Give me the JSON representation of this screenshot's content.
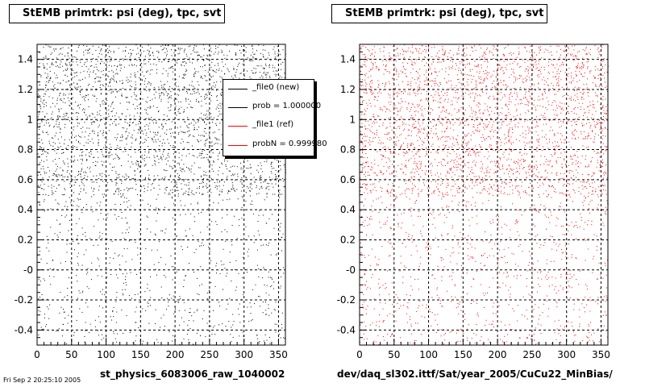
{
  "chart_data": [
    {
      "type": "scatter",
      "title": "StEMB primtrk: psi (deg), tpc, svt",
      "footer": "st_physics_6083006_raw_1040002",
      "xlim": [
        0,
        360
      ],
      "ylim": [
        -0.5,
        1.5
      ],
      "x_ticks": [
        "0",
        "50",
        "100",
        "150",
        "200",
        "250",
        "300",
        "350"
      ],
      "y_ticks": [
        "-0.4",
        "-0.2",
        "-0",
        "0.2",
        "0.4",
        "0.6",
        "0.8",
        "1",
        "1.2",
        "1.4"
      ],
      "grid": true,
      "marker_color": "#000000",
      "distribution": "dense uniform for y 0.5–1.5; sparse uniform for y -0.5–0.5",
      "legend": {
        "placement": "top-right, partially clipped",
        "entries": [
          {
            "label": "_file0 (new)",
            "color": "#000000"
          },
          {
            "label": "prob = 1.000000",
            "color": "#000000"
          },
          {
            "label": "_file1 (ref)",
            "color": "#ff0000"
          },
          {
            "label": "probN = 0.999980",
            "color": "#ff0000"
          }
        ]
      }
    },
    {
      "type": "scatter",
      "title": "StEMB primtrk: psi (deg), tpc, svt",
      "footer": "dev/daq_sl302.ittf/Sat/year_2005/CuCu22_MinBias/",
      "xlim": [
        0,
        360
      ],
      "ylim": [
        -0.5,
        1.5
      ],
      "x_ticks": [
        "0",
        "50",
        "100",
        "150",
        "200",
        "250",
        "300",
        "350"
      ],
      "y_ticks": [
        "-0.4",
        "-0.2",
        "-0",
        "0.2",
        "0.4",
        "0.6",
        "0.8",
        "1",
        "1.2",
        "1.4"
      ],
      "grid": true,
      "marker_color": "#ff0000",
      "distribution": "dense uniform for y 0.5–1.5; sparse uniform for y -0.5–0.5"
    }
  ],
  "corner_text": "Fri Sep 2 20:25:10 2005"
}
